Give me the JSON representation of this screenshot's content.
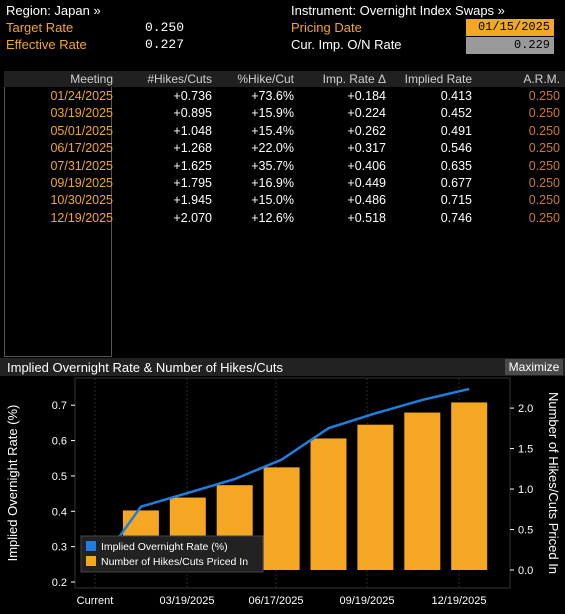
{
  "header": {
    "region_label": "Region: Japan »",
    "instrument_label": "Instrument: Overnight Index Swaps »",
    "target_rate_label": "Target Rate",
    "target_rate_value": "0.250",
    "effective_rate_label": "Effective Rate",
    "effective_rate_value": "0.227",
    "pricing_date_label": "Pricing Date",
    "pricing_date_value": "01/15/2025",
    "cur_imp_label": "Cur. Imp. O/N Rate",
    "cur_imp_value": "0.229"
  },
  "table": {
    "columns": [
      "Meeting",
      "#Hikes/Cuts",
      "%Hike/Cut",
      "Imp. Rate Δ",
      "Implied Rate",
      "A.R.M."
    ],
    "rows": [
      {
        "meeting": "01/24/2025",
        "hikes": "+0.736",
        "pct": "+73.6%",
        "delta": "+0.184",
        "implied": "0.413",
        "arm": "0.250"
      },
      {
        "meeting": "03/19/2025",
        "hikes": "+0.895",
        "pct": "+15.9%",
        "delta": "+0.224",
        "implied": "0.452",
        "arm": "0.250"
      },
      {
        "meeting": "05/01/2025",
        "hikes": "+1.048",
        "pct": "+15.4%",
        "delta": "+0.262",
        "implied": "0.491",
        "arm": "0.250"
      },
      {
        "meeting": "06/17/2025",
        "hikes": "+1.268",
        "pct": "+22.0%",
        "delta": "+0.317",
        "implied": "0.546",
        "arm": "0.250"
      },
      {
        "meeting": "07/31/2025",
        "hikes": "+1.625",
        "pct": "+35.7%",
        "delta": "+0.406",
        "implied": "0.635",
        "arm": "0.250"
      },
      {
        "meeting": "09/19/2025",
        "hikes": "+1.795",
        "pct": "+16.9%",
        "delta": "+0.449",
        "implied": "0.677",
        "arm": "0.250"
      },
      {
        "meeting": "10/30/2025",
        "hikes": "+1.945",
        "pct": "+15.0%",
        "delta": "+0.486",
        "implied": "0.715",
        "arm": "0.250"
      },
      {
        "meeting": "12/19/2025",
        "hikes": "+2.070",
        "pct": "+12.6%",
        "delta": "+0.518",
        "implied": "0.746",
        "arm": "0.250"
      }
    ]
  },
  "chart_panel": {
    "title": "Implied Overnight Rate & Number of Hikes/Cuts",
    "maximize_label": "Maximize"
  },
  "colors": {
    "line": "#1e7fe0",
    "bar": "#f5a623",
    "accent": "#f5a623"
  },
  "chart_data": {
    "type": "bar",
    "categories": [
      "Current",
      "01/24/2025",
      "03/19/2025",
      "05/01/2025",
      "06/17/2025",
      "07/31/2025",
      "09/19/2025",
      "10/30/2025",
      "12/19/2025"
    ],
    "x_tick_labels": [
      "Current",
      "03/19/2025",
      "06/17/2025",
      "09/19/2025",
      "12/19/2025"
    ],
    "series": [
      {
        "name": "Implied Overnight Rate (%)",
        "type": "line",
        "axis": "left",
        "values": [
          0.229,
          0.413,
          0.452,
          0.491,
          0.546,
          0.635,
          0.677,
          0.715,
          0.746
        ]
      },
      {
        "name": "Number of Hikes/Cuts Priced In",
        "type": "bar",
        "axis": "right",
        "values": [
          null,
          0.736,
          0.895,
          1.048,
          1.268,
          1.625,
          1.795,
          1.945,
          2.07
        ]
      }
    ],
    "ylabel_left": "Implied Overnight Rate (%)",
    "ylabel_right": "Number of Hikes/Cuts Priced In",
    "ylim_left": [
      0.2,
      0.76
    ],
    "ylim_right": [
      0.0,
      2.1
    ],
    "yticks_left": [
      "0.2",
      "0.3",
      "0.4",
      "0.5",
      "0.6",
      "0.7"
    ],
    "yticks_right": [
      "0.0",
      "0.5",
      "1.0",
      "1.5",
      "2.0"
    ],
    "legend_placement": "bottom-left",
    "grid": true
  }
}
